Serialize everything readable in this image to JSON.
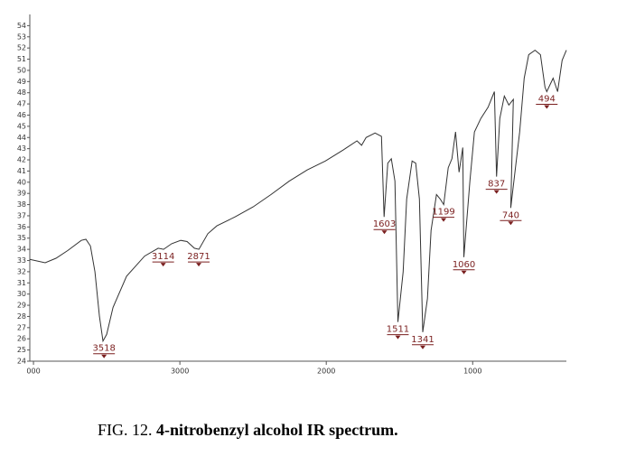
{
  "chart_data": {
    "type": "line",
    "caption_prefix": "FIG. 12.",
    "title": "4-nitrobenzyl alcohol IR spectrum.",
    "x": [
      4025,
      3920,
      3846,
      3765,
      3673,
      3642,
      3611,
      3580,
      3549,
      3525,
      3500,
      3457,
      3364,
      3241,
      3148,
      3111,
      3056,
      2994,
      2951,
      2901,
      2870,
      2809,
      2747,
      2623,
      2500,
      2377,
      2253,
      2130,
      2006,
      1883,
      1790,
      1759,
      1728,
      1667,
      1623,
      1605,
      1580,
      1556,
      1531,
      1511,
      1475,
      1451,
      1414,
      1389,
      1364,
      1341,
      1309,
      1284,
      1247,
      1222,
      1198,
      1167,
      1142,
      1117,
      1093,
      1068,
      1060,
      1019,
      988,
      944,
      895,
      852,
      837,
      815,
      784,
      753,
      722,
      740,
      679,
      648,
      617,
      574,
      537,
      506,
      494,
      451,
      420,
      389,
      360
    ],
    "series": [
      {
        "color": "#333333",
        "values": [
          33.1,
          32.8,
          33.2,
          33.9,
          34.8,
          34.9,
          34.3,
          32.0,
          28.0,
          25.8,
          26.4,
          28.8,
          31.6,
          33.4,
          34.1,
          34.0,
          34.5,
          34.8,
          34.7,
          34.1,
          34.0,
          35.4,
          36.1,
          36.9,
          37.8,
          38.9,
          40.1,
          41.1,
          41.9,
          42.9,
          43.7,
          43.3,
          44.0,
          44.4,
          44.1,
          36.9,
          41.7,
          42.1,
          40.1,
          27.5,
          32.0,
          38.5,
          41.9,
          41.7,
          38.5,
          26.6,
          29.6,
          35.7,
          38.9,
          38.5,
          38.0,
          41.3,
          42.1,
          44.5,
          40.9,
          43.1,
          33.3,
          40.1,
          44.5,
          45.7,
          46.7,
          48.1,
          40.5,
          45.7,
          47.7,
          46.9,
          47.4,
          37.7,
          44.5,
          49.3,
          51.4,
          51.8,
          51.4,
          48.5,
          48.1,
          49.3,
          48.1,
          50.9,
          51.8
        ]
      }
    ],
    "peaks": {
      "x": [
        3518,
        3114,
        2871,
        1603,
        1511,
        1341,
        1199,
        1060,
        837,
        740,
        494
      ],
      "y": [
        25.8,
        34.0,
        34.0,
        36.9,
        27.5,
        26.6,
        38.0,
        33.3,
        40.5,
        37.7,
        48.1
      ]
    },
    "xlim": [
      4025,
      360
    ],
    "xticks": [
      {
        "value": 4000,
        "label": "000"
      },
      3000,
      2000,
      1000
    ],
    "ylim": [
      24,
      55
    ],
    "yticks": [
      24,
      25,
      26,
      27,
      28,
      29,
      30,
      31,
      32,
      33,
      34,
      35,
      36,
      37,
      38,
      39,
      40,
      41,
      42,
      43,
      44,
      45,
      46,
      47,
      48,
      49,
      50,
      51,
      52,
      53,
      54
    ]
  }
}
